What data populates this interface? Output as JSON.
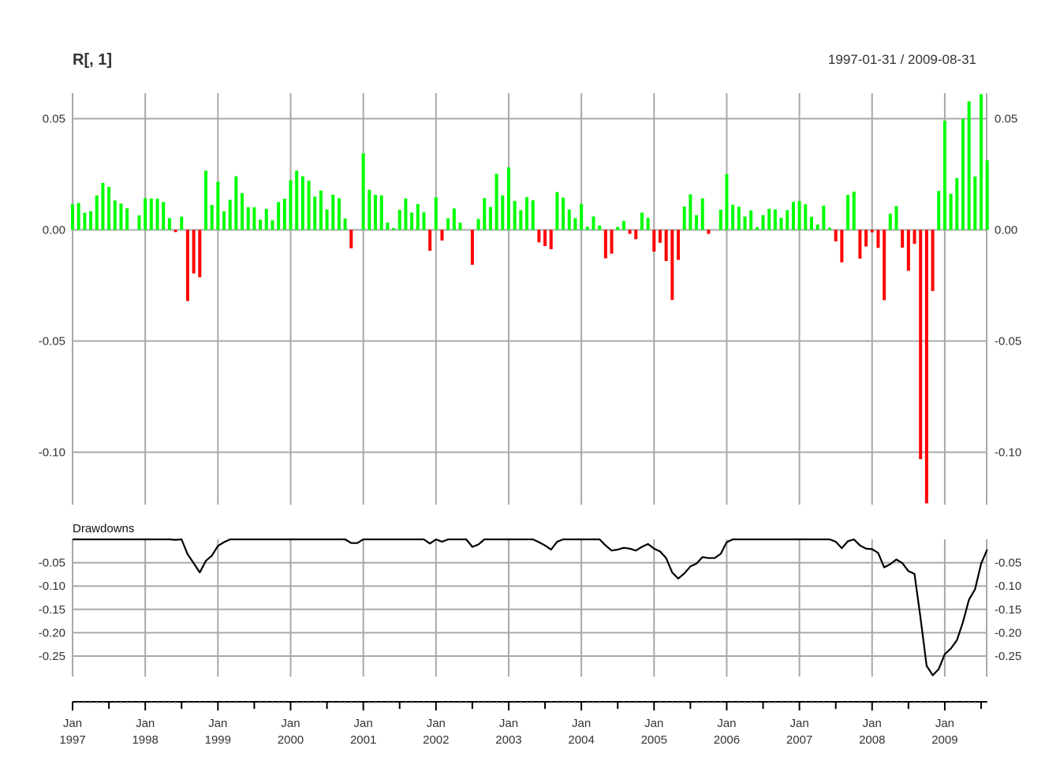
{
  "chart_data": {
    "type": "bar",
    "title": "R[, 1]",
    "date_range": "1997-01-31 / 2009-08-31",
    "colors": {
      "positive": "#00ff00",
      "negative": "#ff0000",
      "grid": "#a8a8a8",
      "line": "#000000",
      "text": "#333333"
    },
    "returns_panel": {
      "series_name": "R[, 1]",
      "start_month": "1997-01",
      "y_ticks": [
        0.05,
        0.0,
        -0.05,
        -0.1
      ],
      "y_tick_labels": [
        "0.05",
        "0.00",
        "-0.05",
        "-0.10"
      ],
      "ylim": [
        -0.124,
        0.061
      ],
      "values": [
        0.0116,
        0.0121,
        0.0077,
        0.0084,
        0.0155,
        0.0211,
        0.0193,
        0.0132,
        0.0118,
        0.0097,
        0.0,
        0.0065,
        0.0142,
        0.0141,
        0.014,
        0.0125,
        0.0053,
        -0.001,
        0.0059,
        -0.032,
        -0.0196,
        -0.0213,
        0.0266,
        0.0112,
        0.0216,
        0.0083,
        0.0135,
        0.0241,
        0.0165,
        0.0102,
        0.0102,
        0.0046,
        0.0094,
        0.0043,
        0.0125,
        0.014,
        0.0223,
        0.0266,
        0.0241,
        0.0221,
        0.0149,
        0.0177,
        0.0092,
        0.0158,
        0.0142,
        0.0051,
        -0.0083,
        0.0,
        0.0344,
        0.018,
        0.0158,
        0.0155,
        0.0033,
        0.0008,
        0.009,
        0.0141,
        0.0078,
        0.0116,
        0.0079,
        -0.0094,
        0.0147,
        -0.0048,
        0.0052,
        0.0096,
        0.0032,
        0.0,
        -0.0157,
        0.0049,
        0.0143,
        0.0103,
        0.0252,
        0.0155,
        0.0281,
        0.013,
        0.0089,
        0.0147,
        0.0133,
        -0.0056,
        -0.0073,
        -0.0087,
        0.017,
        0.0145,
        0.0092,
        0.0053,
        0.0117,
        0.0014,
        0.006,
        0.002,
        -0.0128,
        -0.0107,
        0.0013,
        0.004,
        -0.0018,
        -0.0042,
        0.0078,
        0.0054,
        -0.0098,
        -0.0058,
        -0.014,
        -0.0315,
        -0.0135,
        0.0105,
        0.016,
        0.0066,
        0.0142,
        -0.0018,
        0.0,
        0.0091,
        0.0251,
        0.0113,
        0.0104,
        0.006,
        0.0088,
        0.0012,
        0.0066,
        0.0095,
        0.0092,
        0.0054,
        0.0089,
        0.0126,
        0.013,
        0.0115,
        0.0059,
        0.0024,
        0.0109,
        0.001,
        -0.0052,
        -0.0146,
        0.0157,
        0.0172,
        -0.0129,
        -0.0075,
        -0.0011,
        -0.0081,
        -0.0316,
        0.0073,
        0.0107,
        -0.008,
        -0.0184,
        -0.0063,
        -0.1031,
        -0.123,
        -0.0275,
        0.0175,
        0.049,
        0.0162,
        0.0233,
        0.0499,
        0.0578,
        0.024,
        0.061,
        0.0313
      ]
    },
    "drawdown_panel": {
      "label": "Drawdowns",
      "y_ticks": [
        -0.05,
        -0.1,
        -0.15,
        -0.2,
        -0.25
      ],
      "y_tick_labels": [
        "-0.05",
        "-0.10",
        "-0.15",
        "-0.20",
        "-0.25"
      ],
      "ylim": [
        -0.292,
        0.0
      ],
      "values": [
        0,
        0,
        0,
        0,
        0,
        0,
        0,
        0,
        0,
        0,
        0,
        0,
        0,
        0,
        0,
        0,
        0,
        -0.001,
        0,
        -0.032,
        -0.051,
        -0.071,
        -0.046,
        -0.035,
        -0.014,
        -0.006,
        0,
        0,
        0,
        0,
        0,
        0,
        0,
        0,
        0,
        0,
        0,
        0,
        0,
        0,
        0,
        0,
        0,
        0,
        0,
        0,
        -0.008,
        -0.008,
        0,
        0,
        0,
        0,
        0,
        0,
        0,
        0,
        0,
        0,
        0,
        -0.009,
        0,
        -0.005,
        0,
        0,
        0,
        0,
        -0.016,
        -0.011,
        0,
        0,
        0,
        0,
        0,
        0,
        0,
        0,
        0,
        -0.006,
        -0.013,
        -0.022,
        -0.005,
        0,
        0,
        0,
        0,
        0,
        0,
        0,
        -0.013,
        -0.024,
        -0.022,
        -0.018,
        -0.02,
        -0.024,
        -0.016,
        -0.01,
        -0.02,
        -0.026,
        -0.04,
        -0.071,
        -0.084,
        -0.073,
        -0.058,
        -0.052,
        -0.038,
        -0.04,
        -0.04,
        -0.031,
        -0.006,
        0,
        0,
        0,
        0,
        0,
        0,
        0,
        0,
        0,
        0,
        0,
        0,
        0,
        0,
        0,
        0,
        0,
        -0.005,
        -0.019,
        -0.004,
        0,
        -0.013,
        -0.02,
        -0.021,
        -0.029,
        -0.06,
        -0.053,
        -0.043,
        -0.051,
        -0.068,
        -0.074,
        -0.169,
        -0.271,
        -0.291,
        -0.278,
        -0.246,
        -0.234,
        -0.216,
        -0.177,
        -0.129,
        -0.107,
        -0.052,
        -0.022
      ]
    },
    "x_axis": {
      "years": [
        "1997",
        "1998",
        "1999",
        "2000",
        "2001",
        "2002",
        "2003",
        "2004",
        "2005",
        "2006",
        "2007",
        "2008",
        "2009"
      ],
      "month_label": "Jan"
    }
  }
}
